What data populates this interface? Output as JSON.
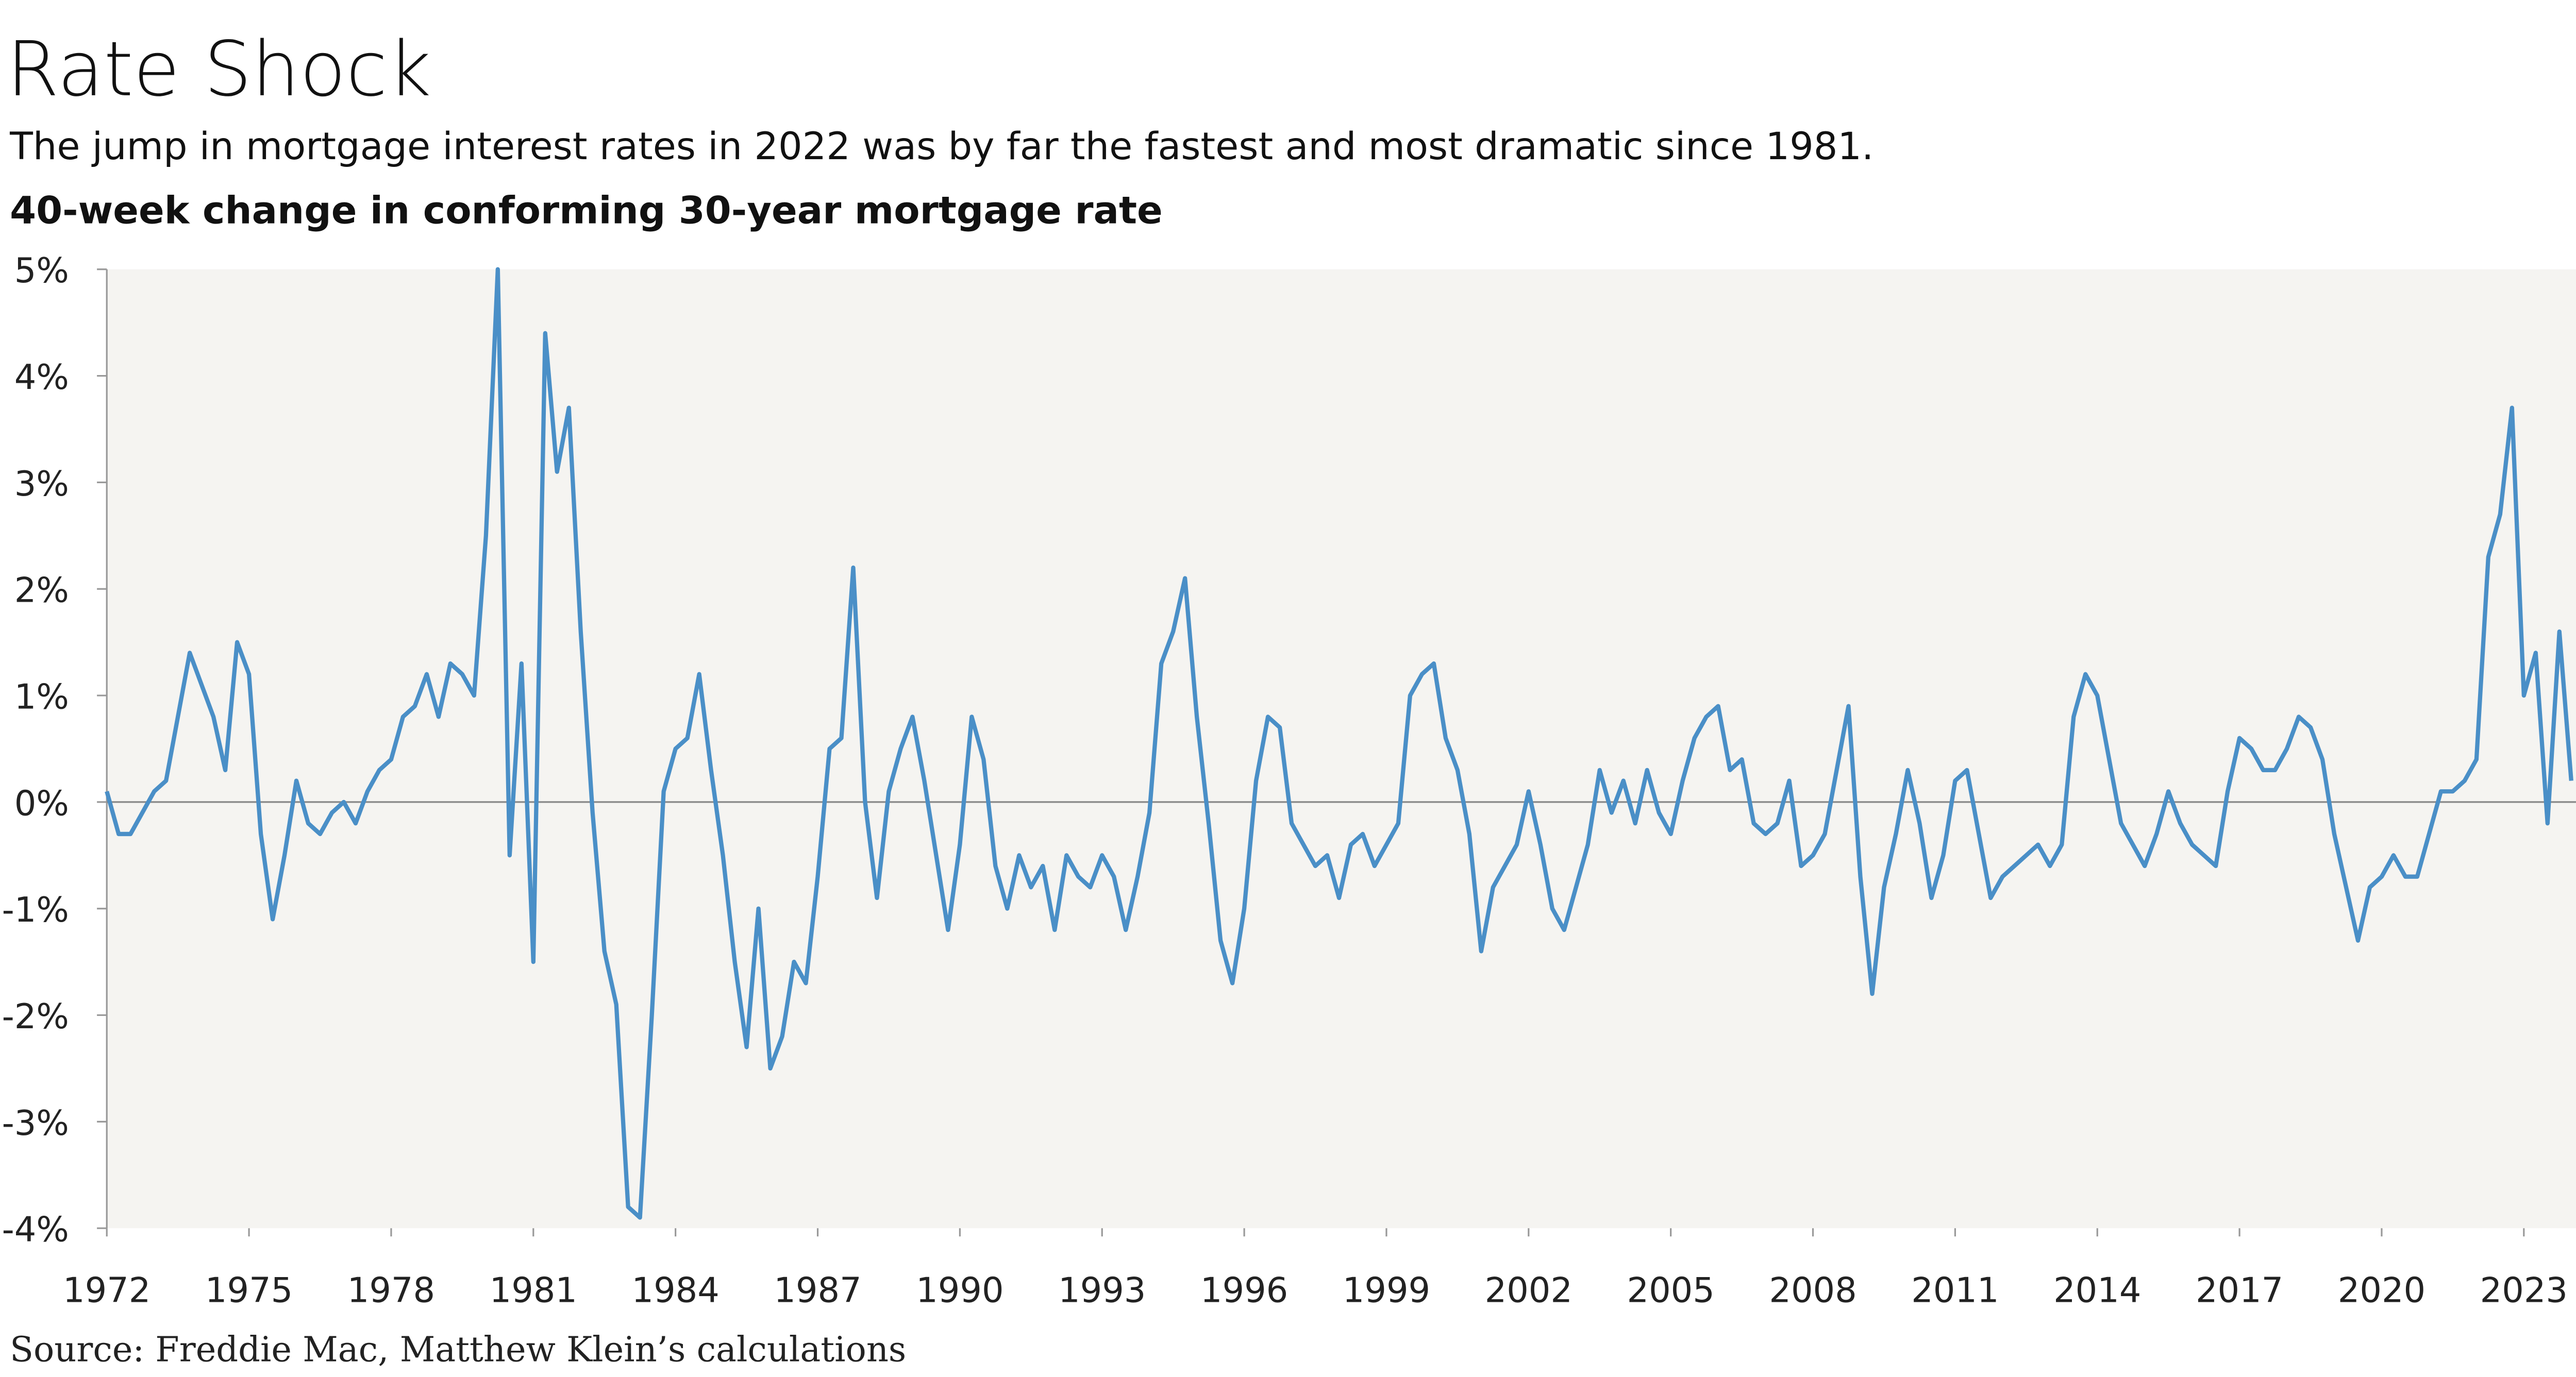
{
  "chart_data": {
    "type": "line",
    "title": "Rate Shock",
    "subtitle": "The jump in mortgage interest rates in 2022 was by far the fastest and most dramatic since 1981.",
    "y_label": "40-week change in conforming 30-year mortgage rate",
    "source": "Source: Freddie Mac, Matthew Klein’s calculations",
    "x": [
      1972,
      1972.25,
      1972.5,
      1972.75,
      1973,
      1973.25,
      1973.5,
      1973.75,
      1974,
      1974.25,
      1974.5,
      1974.75,
      1975,
      1975.25,
      1975.5,
      1975.75,
      1976,
      1976.25,
      1976.5,
      1976.75,
      1977,
      1977.25,
      1977.5,
      1977.75,
      1978,
      1978.25,
      1978.5,
      1978.75,
      1979,
      1979.25,
      1979.5,
      1979.75,
      1980,
      1980.25,
      1980.5,
      1980.75,
      1981,
      1981.25,
      1981.5,
      1981.75,
      1982,
      1982.25,
      1982.5,
      1982.75,
      1983,
      1983.25,
      1983.5,
      1983.75,
      1984,
      1984.25,
      1984.5,
      1984.75,
      1985,
      1985.25,
      1985.5,
      1985.75,
      1986,
      1986.25,
      1986.5,
      1986.75,
      1987,
      1987.25,
      1987.5,
      1987.75,
      1988,
      1988.25,
      1988.5,
      1988.75,
      1989,
      1989.25,
      1989.5,
      1989.75,
      1990,
      1990.25,
      1990.5,
      1990.75,
      1991,
      1991.25,
      1991.5,
      1991.75,
      1992,
      1992.25,
      1992.5,
      1992.75,
      1993,
      1993.25,
      1993.5,
      1993.75,
      1994,
      1994.25,
      1994.5,
      1994.75,
      1995,
      1995.25,
      1995.5,
      1995.75,
      1996,
      1996.25,
      1996.5,
      1996.75,
      1997,
      1997.25,
      1997.5,
      1997.75,
      1998,
      1998.25,
      1998.5,
      1998.75,
      1999,
      1999.25,
      1999.5,
      1999.75,
      2000,
      2000.25,
      2000.5,
      2000.75,
      2001,
      2001.25,
      2001.5,
      2001.75,
      2002,
      2002.25,
      2002.5,
      2002.75,
      2003,
      2003.25,
      2003.5,
      2003.75,
      2004,
      2004.25,
      2004.5,
      2004.75,
      2005,
      2005.25,
      2005.5,
      2005.75,
      2006,
      2006.25,
      2006.5,
      2006.75,
      2007,
      2007.25,
      2007.5,
      2007.75,
      2008,
      2008.25,
      2008.5,
      2008.75,
      2009,
      2009.25,
      2009.5,
      2009.75,
      2010,
      2010.25,
      2010.5,
      2010.75,
      2011,
      2011.25,
      2011.5,
      2011.75,
      2012,
      2012.25,
      2012.5,
      2012.75,
      2013,
      2013.25,
      2013.5,
      2013.75,
      2014,
      2014.25,
      2014.5,
      2014.75,
      2015,
      2015.25,
      2015.5,
      2015.75,
      2016,
      2016.25,
      2016.5,
      2016.75,
      2017,
      2017.25,
      2017.5,
      2017.75,
      2018,
      2018.25,
      2018.5,
      2018.75,
      2019,
      2019.25,
      2019.5,
      2019.75,
      2020,
      2020.25,
      2020.5,
      2020.75,
      2021,
      2021.25,
      2021.5,
      2021.75,
      2022,
      2022.25,
      2022.5,
      2022.75,
      2023,
      2023.25,
      2023.5,
      2023.75,
      2024
    ],
    "series": [
      {
        "color": "#4a8fc7",
        "values": [
          0.1,
          -0.3,
          -0.3,
          -0.1,
          0.1,
          0.2,
          0.8,
          1.4,
          1.1,
          0.8,
          0.3,
          1.5,
          1.2,
          -0.3,
          -1.1,
          -0.5,
          0.2,
          -0.2,
          -0.3,
          -0.1,
          0.0,
          -0.2,
          0.1,
          0.3,
          0.4,
          0.8,
          0.9,
          1.2,
          0.8,
          1.3,
          1.2,
          1.0,
          2.5,
          5.0,
          -0.5,
          1.3,
          -1.5,
          4.4,
          3.1,
          3.7,
          1.6,
          -0.1,
          -1.4,
          -1.9,
          -3.8,
          -3.9,
          -2.0,
          0.1,
          0.5,
          0.6,
          1.2,
          0.3,
          -0.5,
          -1.5,
          -2.3,
          -1.0,
          -2.5,
          -2.2,
          -1.5,
          -1.7,
          -0.7,
          0.5,
          0.6,
          2.2,
          0.0,
          -0.9,
          0.1,
          0.5,
          0.8,
          0.2,
          -0.5,
          -1.2,
          -0.4,
          0.8,
          0.4,
          -0.6,
          -1.0,
          -0.5,
          -0.8,
          -0.6,
          -1.2,
          -0.5,
          -0.7,
          -0.8,
          -0.5,
          -0.7,
          -1.2,
          -0.7,
          -0.1,
          1.3,
          1.6,
          2.1,
          0.8,
          -0.2,
          -1.3,
          -1.7,
          -1.0,
          0.2,
          0.8,
          0.7,
          -0.2,
          -0.4,
          -0.6,
          -0.5,
          -0.9,
          -0.4,
          -0.3,
          -0.6,
          -0.4,
          -0.2,
          1.0,
          1.2,
          1.3,
          0.6,
          0.3,
          -0.3,
          -1.4,
          -0.8,
          -0.6,
          -0.4,
          0.1,
          -0.4,
          -1.0,
          -1.2,
          -0.8,
          -0.4,
          0.3,
          -0.1,
          0.2,
          -0.2,
          0.3,
          -0.1,
          -0.3,
          0.2,
          0.6,
          0.8,
          0.9,
          0.3,
          0.4,
          -0.2,
          -0.3,
          -0.2,
          0.2,
          -0.6,
          -0.5,
          -0.3,
          0.3,
          0.9,
          -0.7,
          -1.8,
          -0.8,
          -0.3,
          0.3,
          -0.2,
          -0.9,
          -0.5,
          0.2,
          0.3,
          -0.3,
          -0.9,
          -0.7,
          -0.6,
          -0.5,
          -0.4,
          -0.6,
          -0.4,
          0.8,
          1.2,
          1.0,
          0.4,
          -0.2,
          -0.4,
          -0.6,
          -0.3,
          0.1,
          -0.2,
          -0.4,
          -0.5,
          -0.6,
          0.1,
          0.6,
          0.5,
          0.3,
          0.3,
          0.5,
          0.8,
          0.7,
          0.4,
          -0.3,
          -0.8,
          -1.3,
          -0.8,
          -0.7,
          -0.5,
          -0.7,
          -0.7,
          -0.3,
          0.1,
          0.1,
          0.2,
          0.4,
          2.3,
          2.7,
          3.7,
          1.0,
          1.4,
          -0.2,
          1.6,
          0.2
        ]
      }
    ],
    "xlim": [
      1972,
      2024.1
    ],
    "xticks": [
      1972,
      1975,
      1978,
      1981,
      1984,
      1987,
      1990,
      1993,
      1996,
      1999,
      2002,
      2005,
      2008,
      2011,
      2014,
      2017,
      2020,
      2023
    ],
    "ylim": [
      -4,
      5
    ],
    "yticks": [
      {
        "value": -4,
        "label": "-4%"
      },
      {
        "value": -3,
        "label": "-3%"
      },
      {
        "value": -2,
        "label": "-2%"
      },
      {
        "value": -1,
        "label": "-1%"
      },
      {
        "value": 0,
        "label": "0%"
      },
      {
        "value": 1,
        "label": "1%"
      },
      {
        "value": 2,
        "label": "2%"
      },
      {
        "value": 3,
        "label": "3%"
      },
      {
        "value": 4,
        "label": "4%"
      },
      {
        "value": 5,
        "label": "5%"
      }
    ]
  }
}
